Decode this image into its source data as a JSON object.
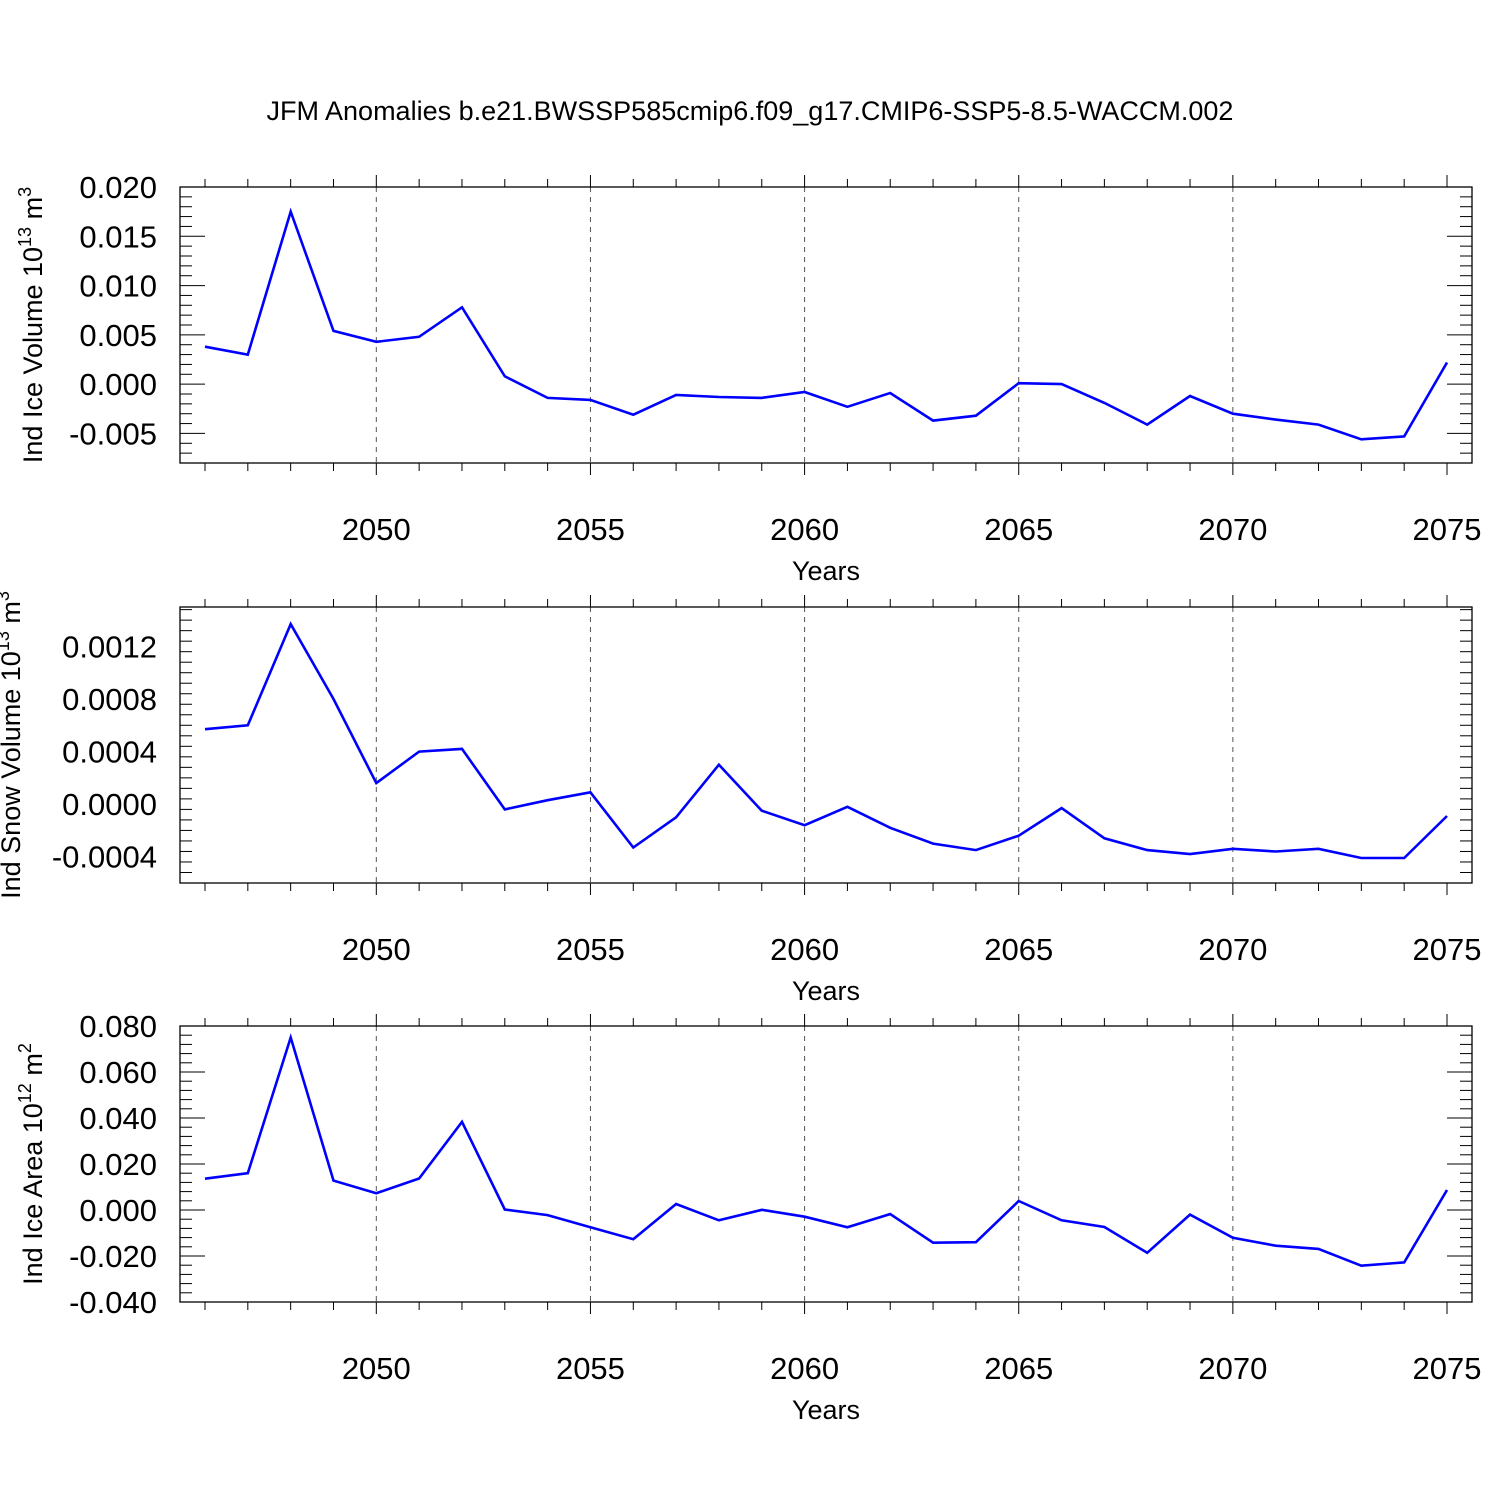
{
  "title": "JFM Anomalies b.e21.BWSSP585cmip6.f09_g17.CMIP6-SSP5-8.5-WACCM.002",
  "line_color": "#0000ff",
  "chart_data": [
    {
      "type": "line",
      "title": "",
      "xlabel": "Years",
      "ylabel": {
        "base": "Ind Ice Volume 10",
        "exp1": "13",
        "unit": " m",
        "exp2": "3"
      },
      "xlim": [
        2046,
        2075
      ],
      "ylim": [
        -0.008,
        0.02
      ],
      "grid": "dashed vertical at major x ticks",
      "x_ticks": [
        2050,
        2055,
        2060,
        2065,
        2070,
        2075
      ],
      "y_ticks": [
        -0.005,
        0.0,
        0.005,
        0.01,
        0.015,
        0.02
      ],
      "y_tick_labels": [
        "-0.005",
        "0.000",
        "0.005",
        "0.010",
        "0.015",
        "0.020"
      ],
      "x": [
        2046,
        2047,
        2048,
        2049,
        2050,
        2051,
        2052,
        2053,
        2054,
        2055,
        2056,
        2057,
        2058,
        2059,
        2060,
        2061,
        2062,
        2063,
        2064,
        2065,
        2066,
        2067,
        2068,
        2069,
        2070,
        2071,
        2072,
        2073,
        2074,
        2075
      ],
      "series": [
        {
          "values": [
            0.0038,
            0.003,
            0.0175,
            0.0054,
            0.0043,
            0.0048,
            0.0078,
            0.0008,
            -0.0014,
            -0.0016,
            -0.0031,
            -0.0011,
            -0.0013,
            -0.0014,
            -0.0008,
            -0.0023,
            -0.0009,
            -0.0037,
            -0.0032,
            0.0001,
            0.0,
            -0.0019,
            -0.0041,
            -0.0012,
            -0.003,
            -0.0036,
            -0.0041,
            -0.0056,
            -0.0053,
            0.0022
          ]
        }
      ]
    },
    {
      "type": "line",
      "title": "",
      "xlabel": "Years",
      "ylabel": {
        "base": "Ind Snow Volume 10",
        "exp1": "13",
        "unit": " m",
        "exp2": "3"
      },
      "xlim": [
        2046,
        2075
      ],
      "ylim": [
        -0.0006,
        0.0015
      ],
      "grid": "dashed vertical at major x ticks",
      "x_ticks": [
        2050,
        2055,
        2060,
        2065,
        2070,
        2075
      ],
      "y_ticks": [
        -0.0004,
        0.0,
        0.0004,
        0.0008,
        0.0012
      ],
      "y_tick_labels": [
        "-0.0004",
        "0.0000",
        "0.0004",
        "0.0008",
        "0.0012"
      ],
      "x": [
        2046,
        2047,
        2048,
        2049,
        2050,
        2051,
        2052,
        2053,
        2054,
        2055,
        2056,
        2057,
        2058,
        2059,
        2060,
        2061,
        2062,
        2063,
        2064,
        2065,
        2066,
        2067,
        2068,
        2069,
        2070,
        2071,
        2072,
        2073,
        2074,
        2075
      ],
      "series": [
        {
          "values": [
            0.00057,
            0.0006,
            0.00137,
            0.0008,
            0.00016,
            0.0004,
            0.00042,
            -4e-05,
            3e-05,
            9e-05,
            -0.00033,
            -0.0001,
            0.0003,
            -5e-05,
            -0.00016,
            -2e-05,
            -0.00018,
            -0.0003,
            -0.00035,
            -0.00024,
            -3e-05,
            -0.00026,
            -0.00035,
            -0.00038,
            -0.00034,
            -0.00036,
            -0.00034,
            -0.00041,
            -0.00041,
            -9e-05
          ]
        }
      ]
    },
    {
      "type": "line",
      "title": "",
      "xlabel": "Years",
      "ylabel": {
        "base": "Ind Ice Area 10",
        "exp1": "12",
        "unit": " m",
        "exp2": "2"
      },
      "xlim": [
        2046,
        2075
      ],
      "ylim": [
        -0.04,
        0.08
      ],
      "grid": "dashed vertical at major x ticks",
      "x_ticks": [
        2050,
        2055,
        2060,
        2065,
        2070,
        2075
      ],
      "y_ticks": [
        -0.04,
        -0.02,
        0.0,
        0.02,
        0.04,
        0.06,
        0.08
      ],
      "y_tick_labels": [
        "-0.040",
        "-0.020",
        "0.000",
        "0.020",
        "0.040",
        "0.060",
        "0.080"
      ],
      "x": [
        2046,
        2047,
        2048,
        2049,
        2050,
        2051,
        2052,
        2053,
        2054,
        2055,
        2056,
        2057,
        2058,
        2059,
        2060,
        2061,
        2062,
        2063,
        2064,
        2065,
        2066,
        2067,
        2068,
        2069,
        2070,
        2071,
        2072,
        2073,
        2074,
        2075
      ],
      "series": [
        {
          "values": [
            0.0136,
            0.016,
            0.075,
            0.0128,
            0.0073,
            0.0137,
            0.0383,
            0.0002,
            -0.0022,
            -0.0075,
            -0.0127,
            0.0026,
            -0.0045,
            0.0001,
            -0.0029,
            -0.0075,
            -0.0018,
            -0.0142,
            -0.014,
            0.0039,
            -0.0045,
            -0.0074,
            -0.0186,
            -0.002,
            -0.0121,
            -0.0155,
            -0.0169,
            -0.0242,
            -0.0228,
            0.0087
          ]
        }
      ]
    }
  ]
}
